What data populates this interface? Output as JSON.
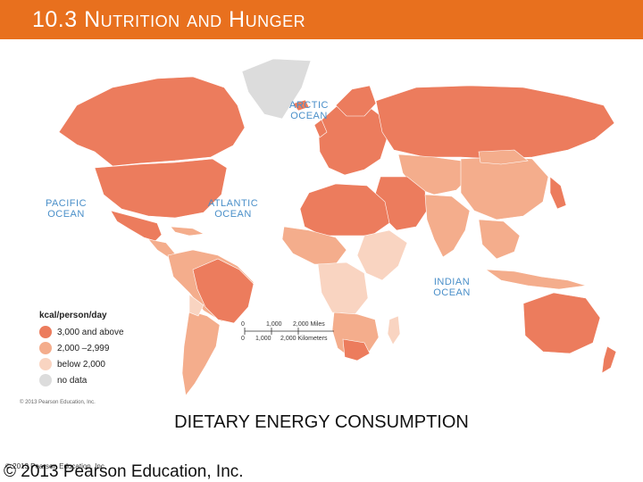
{
  "header": {
    "title": "10.3 Nutrition and Hunger",
    "background": "#e8701e"
  },
  "map": {
    "oceans": {
      "arctic": "ARCTIC OCEAN",
      "pacific": "PACIFIC OCEAN",
      "atlantic": "ATLANTIC OCEAN",
      "indian": "INDIAN OCEAN"
    },
    "legend": {
      "title": "kcal/person/day",
      "items": [
        {
          "label": "3,000 and above",
          "color": "#ec7c5d"
        },
        {
          "label": "2,000 –2,999",
          "color": "#f4ad8c"
        },
        {
          "label": "below 2,000",
          "color": "#f9d4c1"
        },
        {
          "label": "no data",
          "color": "#dcdcdc"
        }
      ]
    },
    "scale": {
      "miles": [
        "0",
        "1,000",
        "2,000 Miles"
      ],
      "km": [
        "0",
        "1,000",
        "2,000 Kilometers"
      ]
    },
    "credit": "© 2013 Pearson Education, Inc."
  },
  "caption": "DIETARY ENERGY CONSUMPTION",
  "footer": {
    "small": "© 2013 Pearson Education, Inc.",
    "large": "© 2013 Pearson Education, Inc."
  }
}
